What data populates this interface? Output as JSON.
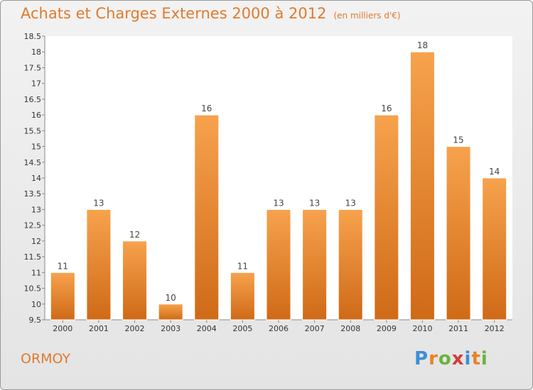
{
  "chart_data": {
    "type": "bar",
    "title": "Achats et Charges Externes 2000 à 2012",
    "subtitle": "(en milliers d'€)",
    "categories": [
      "2000",
      "2001",
      "2002",
      "2003",
      "2004",
      "2005",
      "2006",
      "2007",
      "2008",
      "2009",
      "2010",
      "2011",
      "2012"
    ],
    "values": [
      11,
      13,
      12,
      10,
      16,
      11,
      13,
      13,
      13,
      16,
      18,
      15,
      14
    ],
    "yticks": [
      "9.5",
      "10",
      "10.5",
      "11",
      "11.5",
      "12",
      "12.5",
      "13",
      "13.5",
      "14",
      "14.5",
      "15",
      "15.5",
      "16",
      "16.5",
      "17",
      "17.5",
      "18",
      "18.5"
    ],
    "ylim": [
      9.5,
      18.5
    ],
    "xlabel": "",
    "ylabel": "",
    "grid": false,
    "bar_color": "#e8832a"
  },
  "footer": {
    "commune": "ORMOY",
    "logo": [
      "P",
      "r",
      "o",
      "x",
      "i",
      "t",
      "i"
    ],
    "logo_colors": [
      "#3a8fd6",
      "#e8832a",
      "#6ab33d",
      "#d93a3a",
      "#3a8fd6",
      "#e8832a",
      "#6ab33d"
    ]
  }
}
